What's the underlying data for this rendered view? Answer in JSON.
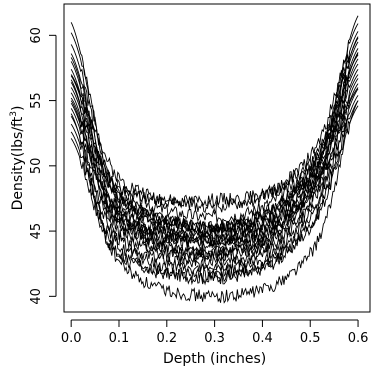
{
  "chart_data": {
    "type": "line",
    "xlabel": "Depth (inches)",
    "ylabel": "Density(lbs/ft",
    "ylabel_superscript": "3",
    "ylabel_suffix": ")",
    "xlim": [
      -0.015,
      0.625
    ],
    "ylim": [
      38.8,
      62.4
    ],
    "x_ticks": [
      0.0,
      0.1,
      0.2,
      0.3,
      0.4,
      0.5,
      0.6
    ],
    "x_tick_labels": [
      "0.0",
      "0.1",
      "0.2",
      "0.3",
      "0.4",
      "0.5",
      "0.6"
    ],
    "y_ticks": [
      40,
      45,
      50,
      55,
      60
    ],
    "y_tick_labels": [
      "40",
      "45",
      "50",
      "55",
      "60"
    ],
    "grid": false,
    "line_color": "#000000",
    "series": [
      {
        "values": [
          61.0,
          49.6,
          46.6,
          45.6,
          45.3,
          45.9,
          47.6,
          51.3,
          61.5
        ]
      },
      {
        "values": [
          60.2,
          50.5,
          48.0,
          47.2,
          46.9,
          47.3,
          48.8,
          52.4,
          60.9
        ]
      },
      {
        "values": [
          59.3,
          49.8,
          47.3,
          46.4,
          46.1,
          46.5,
          48.1,
          51.7,
          60.3
        ]
      },
      {
        "values": [
          58.6,
          49.1,
          46.5,
          45.6,
          45.3,
          45.8,
          47.5,
          51.2,
          59.8
        ]
      },
      {
        "values": [
          58.0,
          48.6,
          46.0,
          45.0,
          44.7,
          45.2,
          46.9,
          50.8,
          59.5
        ]
      },
      {
        "values": [
          57.4,
          48.1,
          45.5,
          44.6,
          44.3,
          44.8,
          46.5,
          50.5,
          59.0
        ]
      },
      {
        "values": [
          56.9,
          48.8,
          46.5,
          45.6,
          45.4,
          45.8,
          47.3,
          50.9,
          58.6
        ]
      },
      {
        "values": [
          56.4,
          47.6,
          45.1,
          44.2,
          43.9,
          44.4,
          46.1,
          50.0,
          58.2
        ]
      },
      {
        "values": [
          56.0,
          47.9,
          45.7,
          44.9,
          44.7,
          45.1,
          46.6,
          50.3,
          57.8
        ]
      },
      {
        "values": [
          55.6,
          47.0,
          44.6,
          43.7,
          43.5,
          44.0,
          45.7,
          49.5,
          57.4
        ]
      },
      {
        "values": [
          55.2,
          47.4,
          45.2,
          44.5,
          44.3,
          44.7,
          46.2,
          49.8,
          57.0
        ]
      },
      {
        "values": [
          54.8,
          46.6,
          44.2,
          43.4,
          43.1,
          43.6,
          45.2,
          49.0,
          56.7
        ]
      },
      {
        "values": [
          54.4,
          46.1,
          43.8,
          43.0,
          42.8,
          43.2,
          44.8,
          48.6,
          56.3
        ]
      },
      {
        "values": [
          53.8,
          45.6,
          43.3,
          42.6,
          42.4,
          42.8,
          44.3,
          48.1,
          55.9
        ]
      },
      {
        "values": [
          53.2,
          45.1,
          42.9,
          42.2,
          42.0,
          42.4,
          43.9,
          47.6,
          55.4
        ]
      },
      {
        "values": [
          52.6,
          44.6,
          42.4,
          41.8,
          41.6,
          42.0,
          43.5,
          47.1,
          55.0
        ]
      },
      {
        "values": [
          52.1,
          44.3,
          42.2,
          41.6,
          41.4,
          41.8,
          43.3,
          46.9,
          54.6
        ]
      },
      {
        "values": [
          54.0,
          44.3,
          41.2,
          40.3,
          40.0,
          40.3,
          41.5,
          45.0,
          55.0
        ]
      },
      {
        "values": [
          57.0,
          49.3,
          47.6,
          47.3,
          47.4,
          47.6,
          48.7,
          51.5,
          58.5
        ]
      },
      {
        "values": [
          55.0,
          46.8,
          44.8,
          44.3,
          44.2,
          44.5,
          45.9,
          49.4,
          56.0
        ]
      },
      {
        "values": [
          58.3,
          49.0,
          46.4,
          45.4,
          45.1,
          45.5,
          47.1,
          50.8,
          59.9
        ]
      },
      {
        "values": [
          56.6,
          47.3,
          44.6,
          43.6,
          43.3,
          43.8,
          45.6,
          49.7,
          58.7
        ]
      }
    ]
  }
}
